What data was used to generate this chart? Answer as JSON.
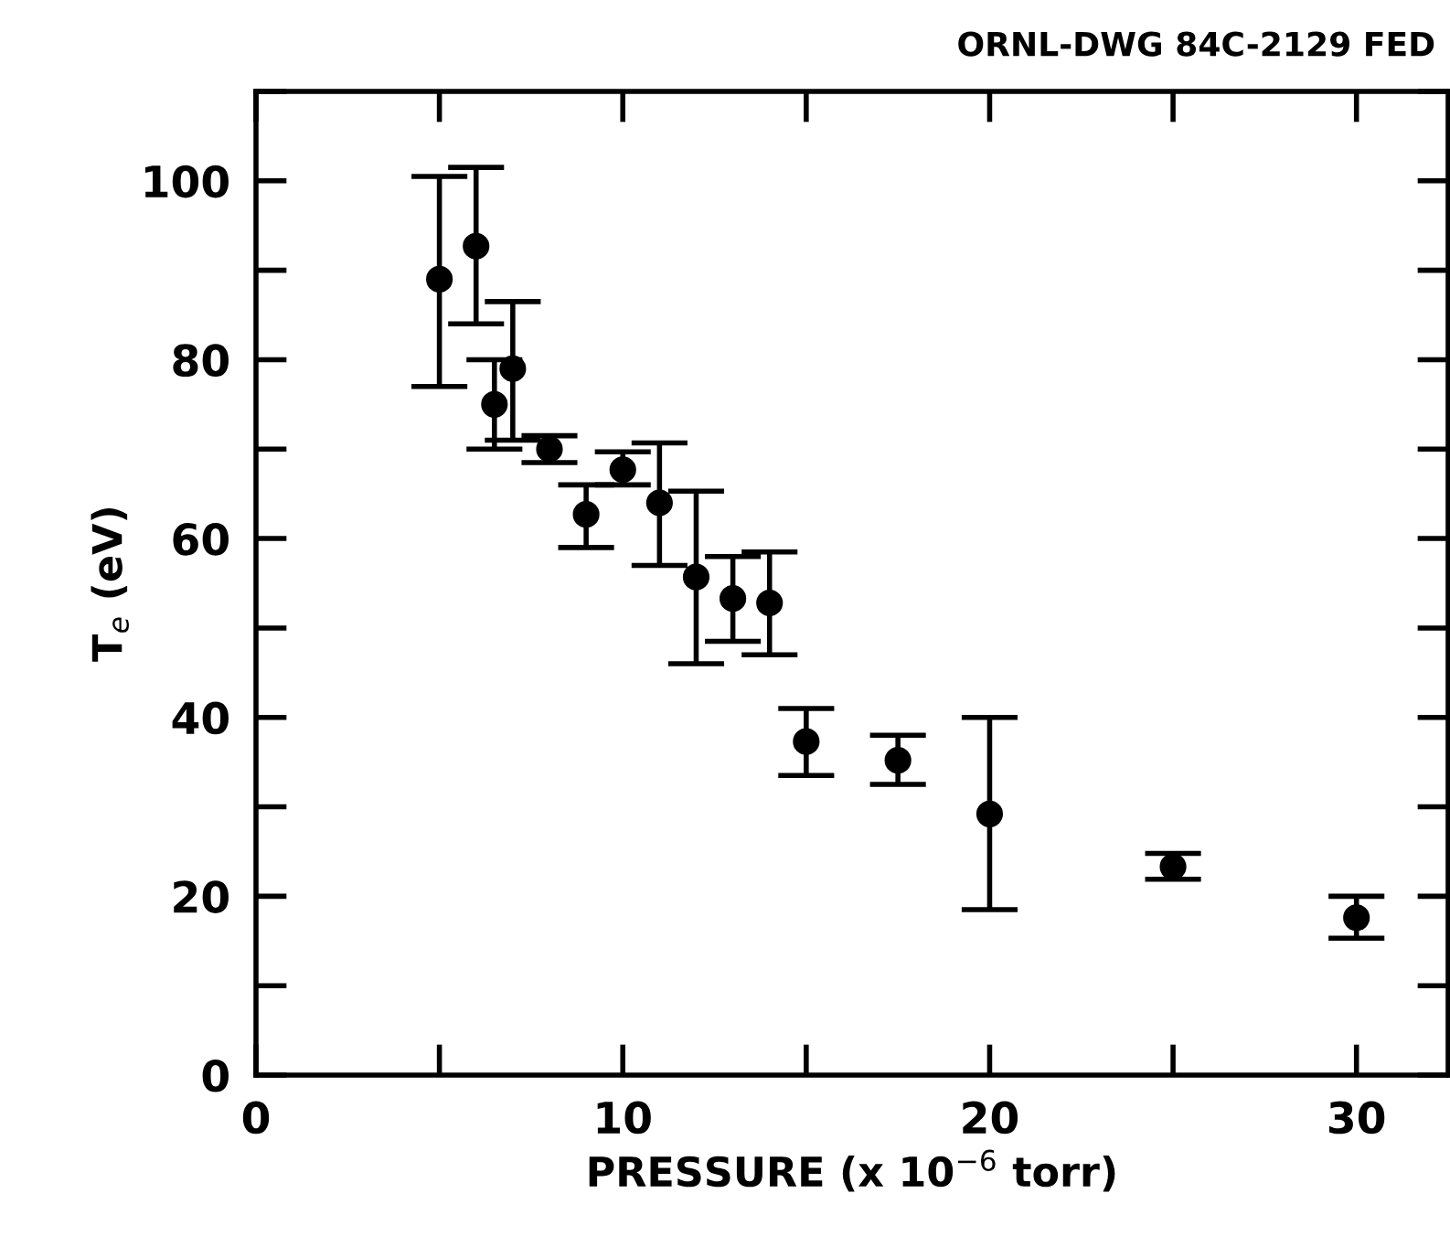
{
  "chart_data": {
    "type": "scatter",
    "xlabel": "PRESSURE (x 10$^{−6}$ torr)",
    "ylabel": "T$_{e}$ (eV)",
    "annotations": [
      "ORNL-DWG 84C-2129 FED"
    ],
    "x": [
      5,
      6,
      6.5,
      7,
      8,
      9,
      10,
      11,
      12,
      13,
      14,
      15,
      17.5,
      20,
      25,
      30
    ],
    "values": [
      89,
      92.7,
      75,
      79,
      70,
      62.7,
      67.7,
      64,
      55.7,
      53.3,
      52.8,
      37.3,
      35.2,
      29.2,
      23.3,
      17.6
    ],
    "errors": [
      [
        77,
        100.5
      ],
      [
        84,
        101.5
      ],
      [
        70,
        80
      ],
      [
        71,
        86.5
      ],
      [
        68.5,
        71.5
      ],
      [
        59,
        66
      ],
      [
        66,
        69.7
      ],
      [
        57,
        70.7
      ],
      [
        46,
        65.3
      ],
      [
        48.5,
        58
      ],
      [
        47,
        58.5
      ],
      [
        33.5,
        41
      ],
      [
        32.5,
        38
      ],
      [
        18.5,
        40
      ],
      [
        21.9,
        24.8
      ],
      [
        15.3,
        20
      ]
    ],
    "color": "#000000",
    "marker": "circle",
    "xlim": [
      0,
      32.5
    ],
    "ylim": [
      0,
      110
    ],
    "xticks": [
      0,
      10,
      20,
      30
    ],
    "yticks": [
      0,
      20,
      40,
      60,
      80,
      100
    ],
    "grid": false,
    "legend": false
  }
}
